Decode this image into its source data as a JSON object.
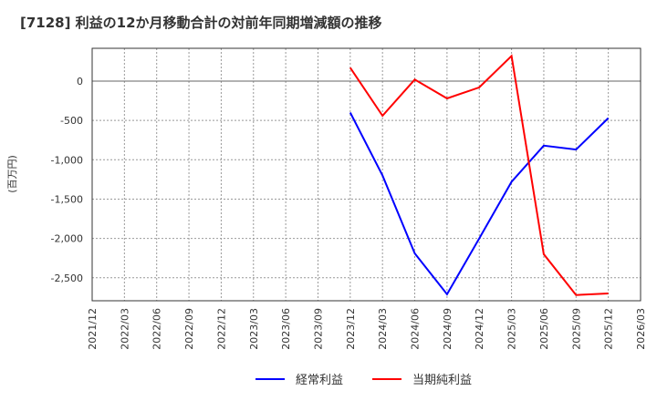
{
  "header": {
    "title": "[7128]  利益の12か月移動合計の対前年同期増減額の推移"
  },
  "legend": {
    "items": [
      {
        "label": "経常利益",
        "color": "#0000ff"
      },
      {
        "label": "当期純利益",
        "color": "#ff0000"
      }
    ]
  },
  "chart_data": {
    "type": "line",
    "title": "[7128]  利益の12か月移動合計の対前年同期増減額の推移",
    "xlabel": "",
    "ylabel": "(百万円)",
    "ylim": [
      -2800,
      420
    ],
    "yticks": [
      0,
      -500,
      -1000,
      -1500,
      -2000,
      -2500
    ],
    "ytick_labels": [
      "0",
      "-500",
      "-1,000",
      "-1,500",
      "-2,000",
      "-2,500"
    ],
    "grid": true,
    "legend_position": "bottom",
    "categories": [
      "2021/12",
      "2022/03",
      "2022/06",
      "2022/09",
      "2022/12",
      "2023/03",
      "2023/06",
      "2023/09",
      "2023/12",
      "2024/03",
      "2024/06",
      "2024/09",
      "2024/12",
      "2025/03",
      "2025/06",
      "2025/09",
      "2025/12",
      "2026/03"
    ],
    "series": [
      {
        "name": "経常利益",
        "color": "#0000ff",
        "values": [
          null,
          null,
          null,
          null,
          null,
          null,
          null,
          null,
          -400,
          -1200,
          -2190,
          -2710,
          -2000,
          -1280,
          -820,
          -870,
          -470,
          null
        ]
      },
      {
        "name": "当期純利益",
        "color": "#ff0000",
        "values": [
          null,
          null,
          null,
          null,
          null,
          null,
          null,
          null,
          170,
          -440,
          20,
          -220,
          -80,
          320,
          -2200,
          -2720,
          -2700,
          null
        ]
      }
    ]
  }
}
